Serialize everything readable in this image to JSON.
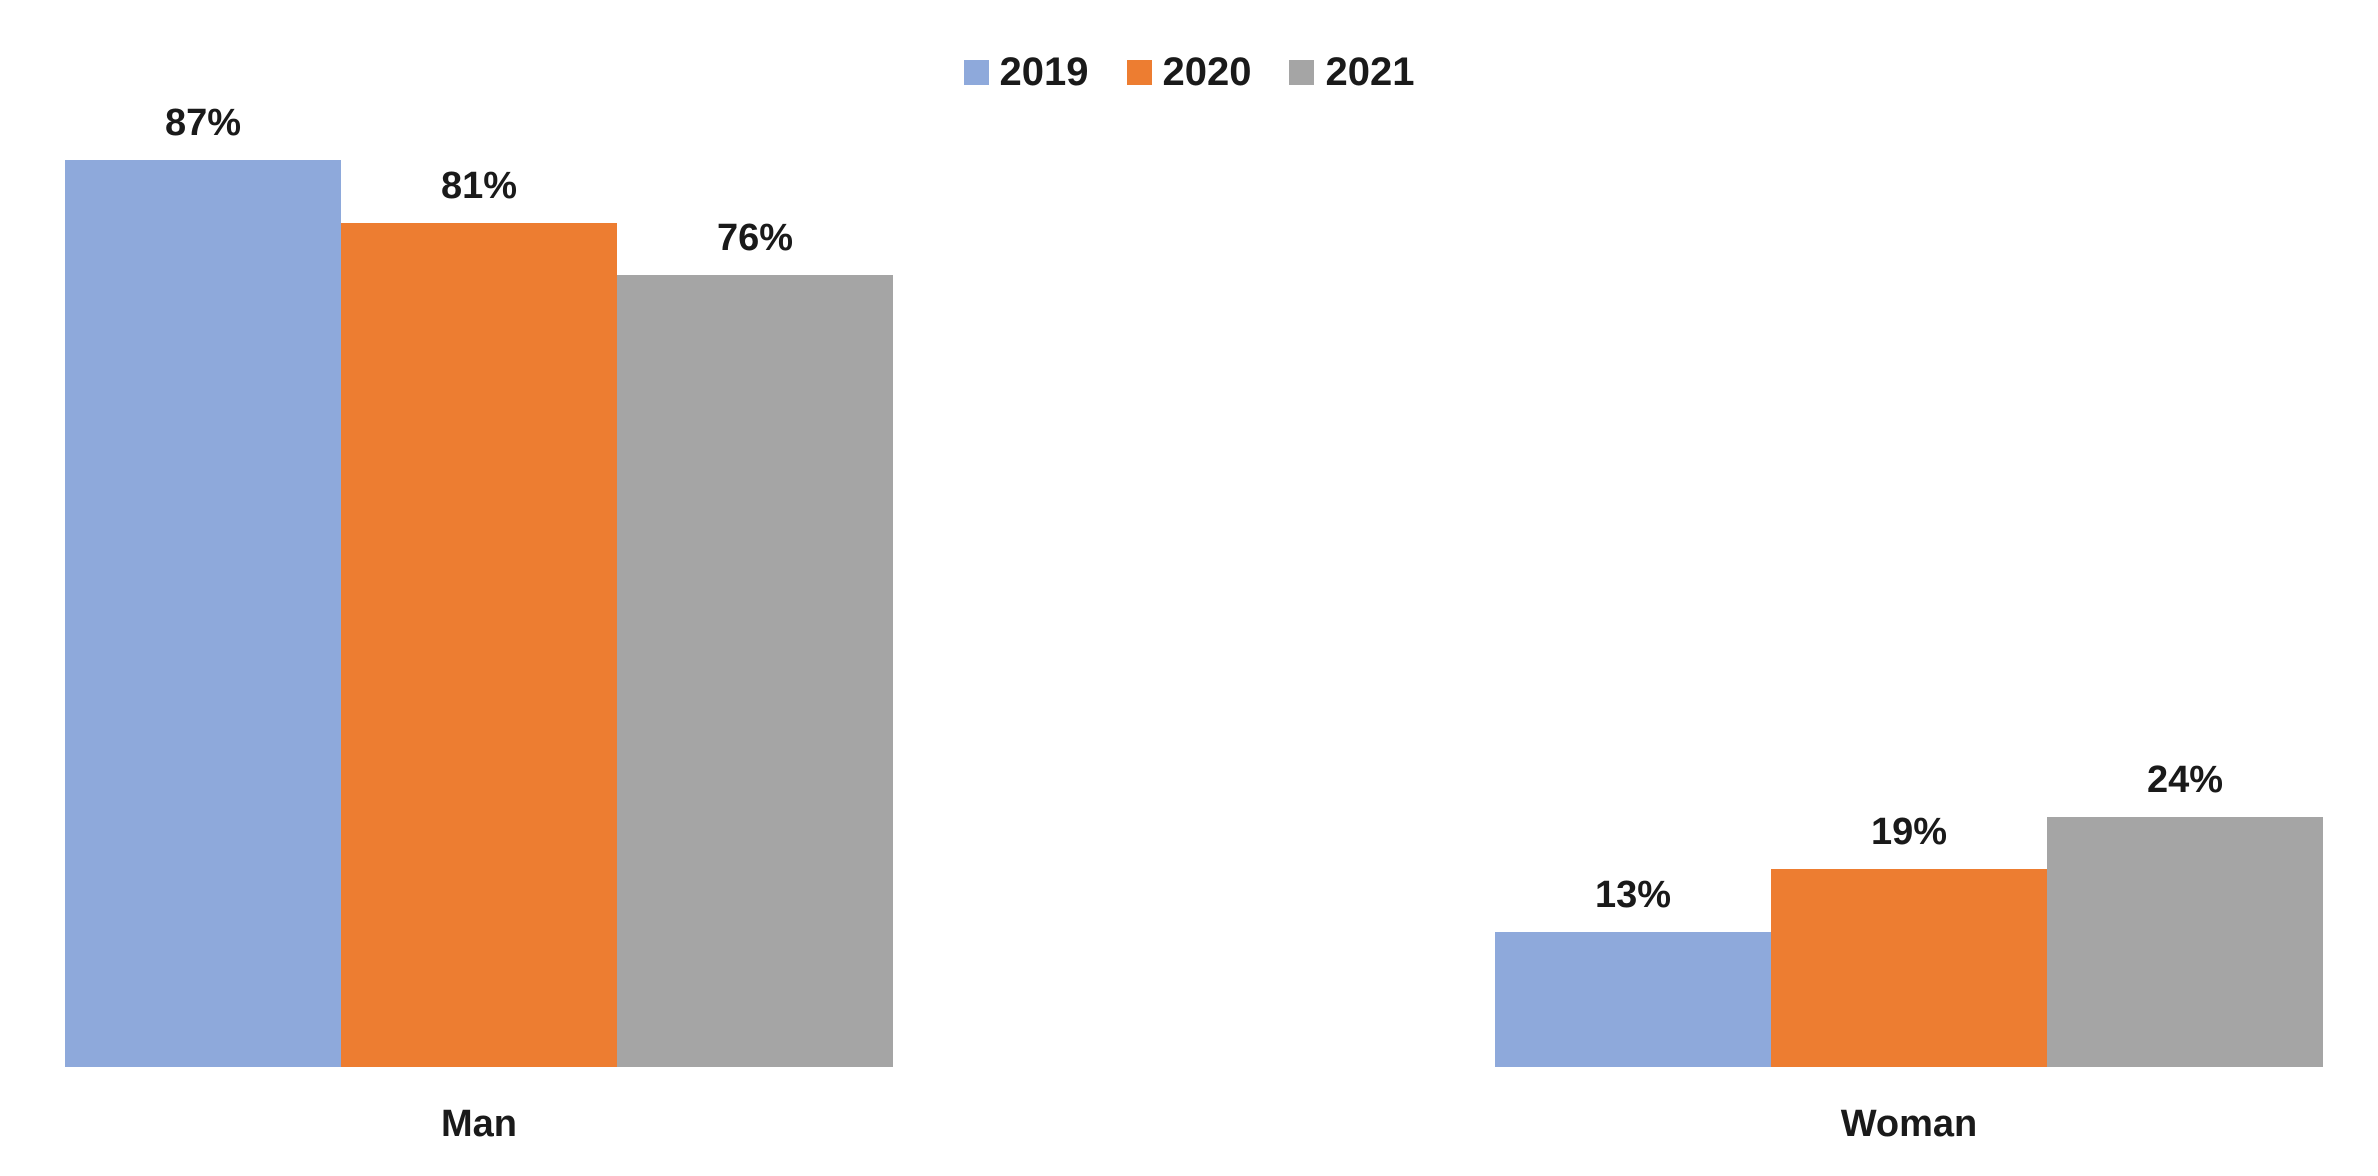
{
  "chart_data": {
    "type": "bar",
    "title": "",
    "xlabel": "",
    "ylabel": "",
    "categories": [
      "Man",
      "Woman"
    ],
    "series": [
      {
        "name": "2019",
        "color": "#8EA9DB",
        "values": [
          87,
          13
        ]
      },
      {
        "name": "2020",
        "color": "#ED7D31",
        "values": [
          81,
          19
        ]
      },
      {
        "name": "2021",
        "color": "#A5A5A5",
        "values": [
          76,
          24
        ]
      }
    ],
    "value_suffix": "%",
    "data_labels": [
      [
        "87%",
        "81%",
        "76%"
      ],
      [
        "13%",
        "19%",
        "24%"
      ]
    ],
    "ylim": [
      0,
      100
    ],
    "grid": false,
    "axes_visible": false,
    "legend_position": "top",
    "label_color": "#1a1a1a",
    "background_color": "#ffffff"
  }
}
